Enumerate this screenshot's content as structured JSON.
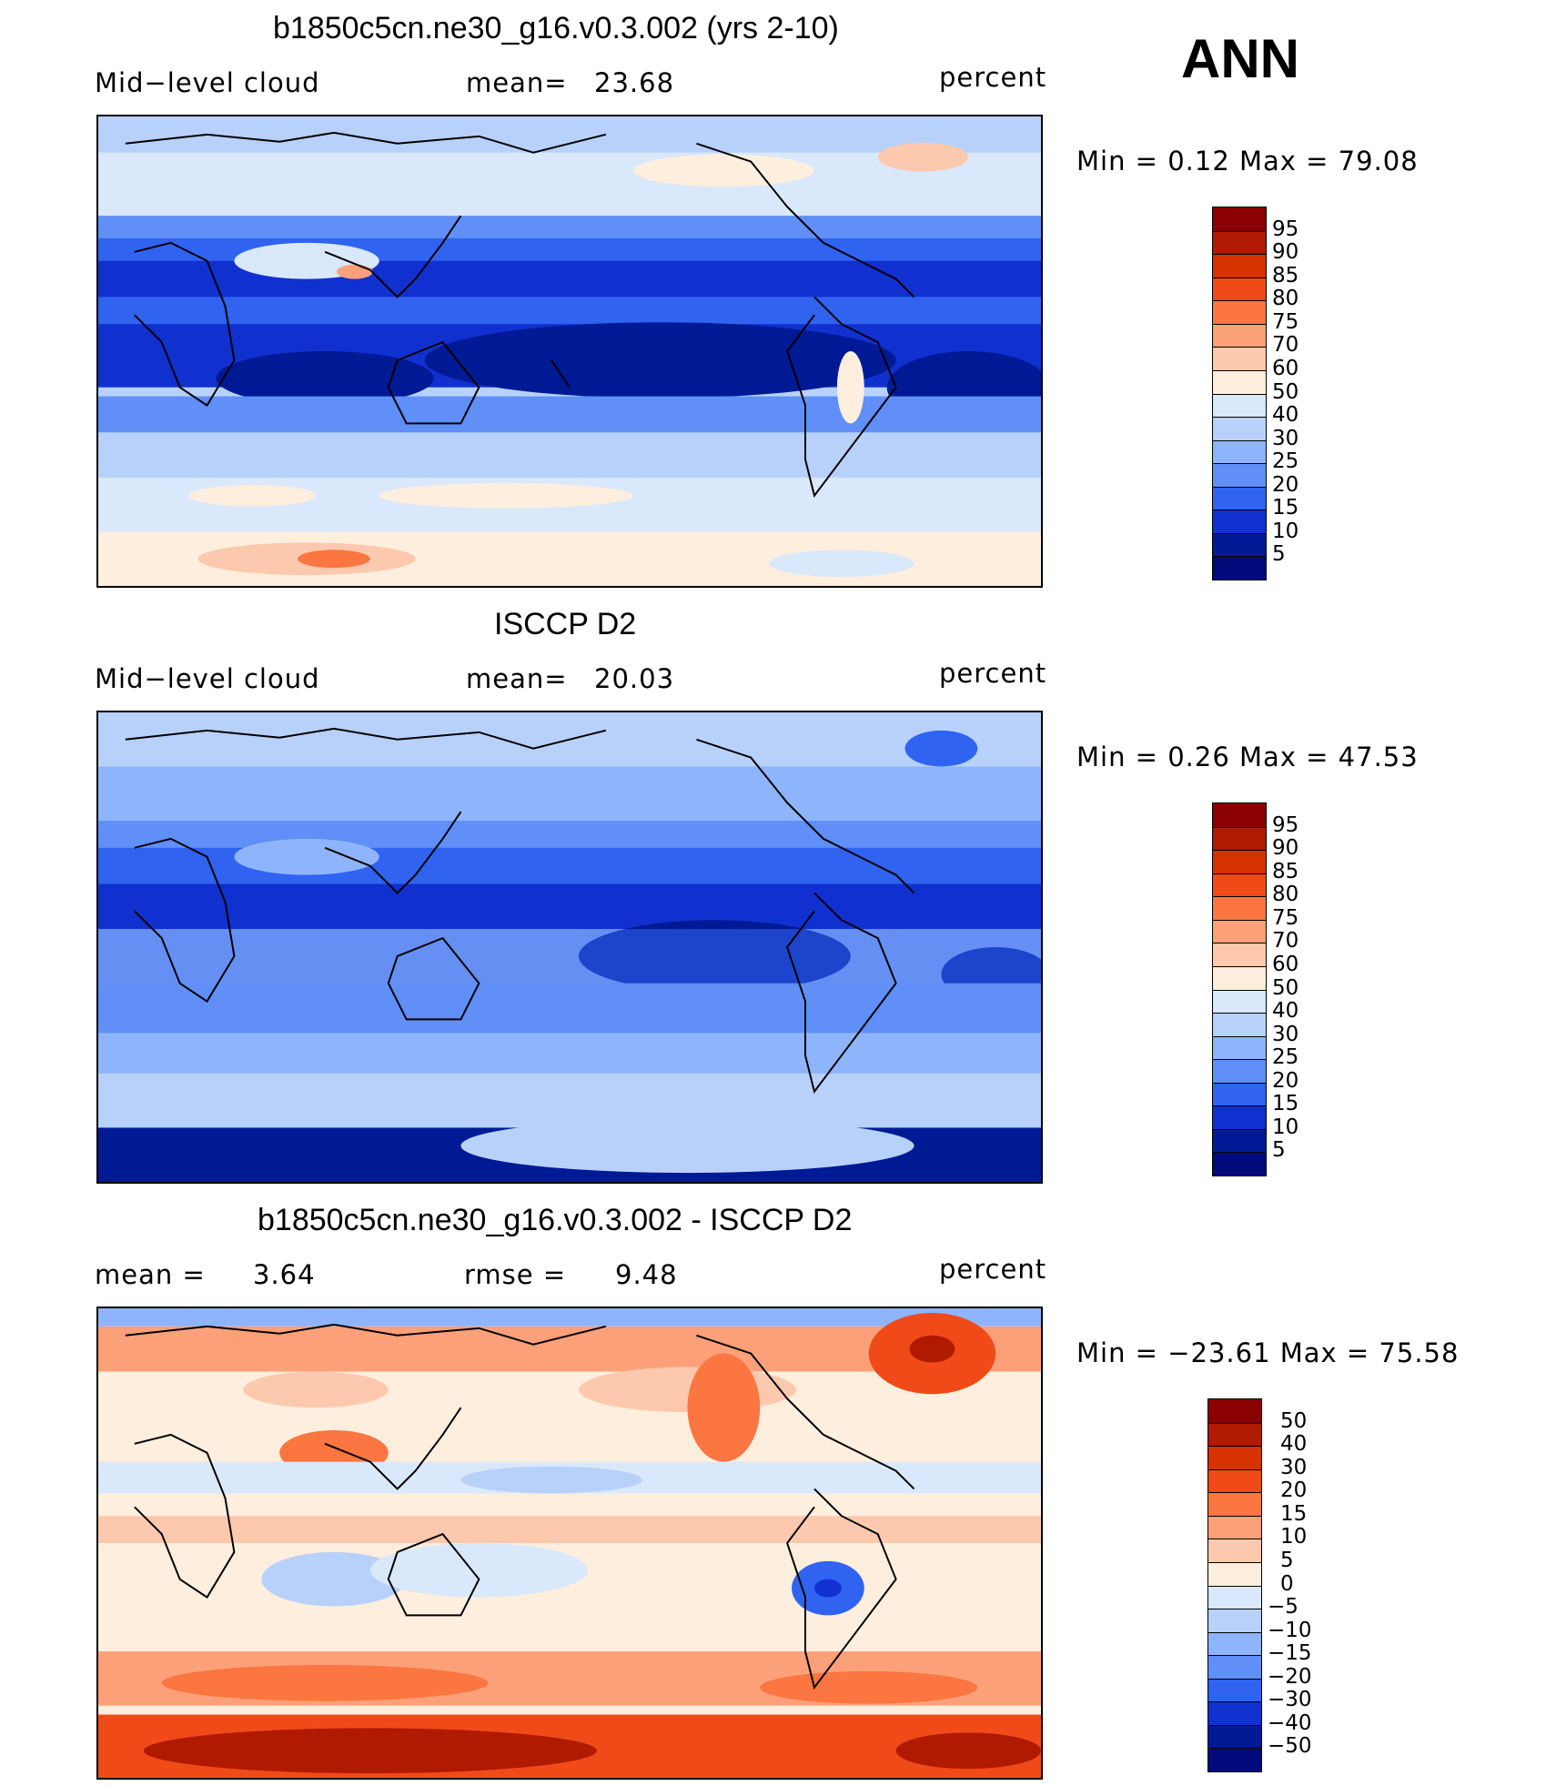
{
  "season": "ANN",
  "panels": [
    {
      "title": "b1850c5cn.ne30_g16.v0.3.002 (yrs 2-10)",
      "left_label": "Mid−level  cloud",
      "center_label": "mean=",
      "center_value": "23.68",
      "units": "percent",
      "minmax": "Min  =      0.12  Max  =     79.08",
      "colorbar_labels": [
        "95",
        "90",
        "85",
        "80",
        "75",
        "70",
        "60",
        "50",
        "40",
        "30",
        "25",
        "20",
        "15",
        "10",
        "5"
      ],
      "colorbar_colors": [
        "#8b0000",
        "#b01a00",
        "#d63200",
        "#ef4a18",
        "#fb7640",
        "#fca07a",
        "#fdc9ae",
        "#feeede",
        "#d9e8fb",
        "#b8d1fb",
        "#8eb5fb",
        "#5f8ff7",
        "#2f63f0",
        "#1030d0",
        "#001a95",
        "#000a7a"
      ]
    },
    {
      "title": "ISCCP D2",
      "left_label": "Mid−level  cloud",
      "center_label": "mean=",
      "center_value": "20.03",
      "units": "percent",
      "minmax": "Min  =      0.26  Max  =     47.53",
      "colorbar_labels": [
        "95",
        "90",
        "85",
        "80",
        "75",
        "70",
        "60",
        "50",
        "40",
        "30",
        "25",
        "20",
        "15",
        "10",
        "5"
      ],
      "colorbar_colors": [
        "#8b0000",
        "#b01a00",
        "#d63200",
        "#ef4a18",
        "#fb7640",
        "#fca07a",
        "#fdc9ae",
        "#feeede",
        "#d9e8fb",
        "#b8d1fb",
        "#8eb5fb",
        "#5f8ff7",
        "#2f63f0",
        "#1030d0",
        "#001a95",
        "#000a7a"
      ]
    },
    {
      "title": "b1850c5cn.ne30_g16.v0.3.002 - ISCCP D2",
      "left_label": "mean  =",
      "left_value": "3.64",
      "center_label": "rmse  =",
      "center_value": "9.48",
      "units": "percent",
      "minmax": "Min  =  −23.61  Max  =     75.58",
      "colorbar_labels": [
        "50",
        "40",
        "30",
        "20",
        "15",
        "10",
        "5",
        "0",
        "−5",
        "−10",
        "−15",
        "−20",
        "−30",
        "−40",
        "−50"
      ],
      "colorbar_colors": [
        "#8b0000",
        "#b01a00",
        "#d63200",
        "#ef4a18",
        "#fb7640",
        "#fca07a",
        "#fdc9ae",
        "#feeede",
        "#d9e8fb",
        "#b8d1fb",
        "#8eb5fb",
        "#5f8ff7",
        "#2f63f0",
        "#1030d0",
        "#001a95",
        "#000a7a"
      ]
    }
  ]
}
